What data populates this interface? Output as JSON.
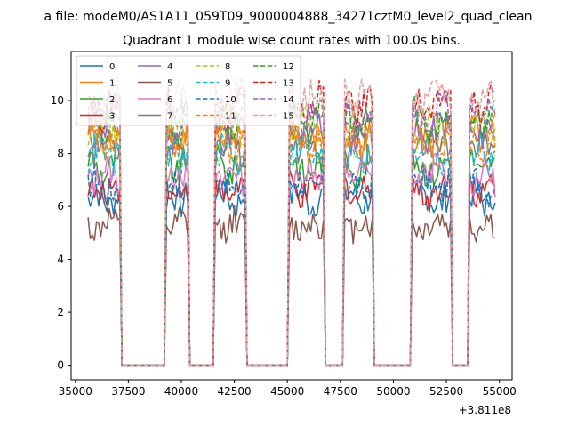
{
  "figure": {
    "suptitle": "a file: modeM0/AS1A11_059T09_9000004888_34271cztM0_level2_quad_clean",
    "offset_label": "+3.811e8"
  },
  "chart_data": {
    "type": "line",
    "title": "Quadrant 1 module wise count rates with 100.0s bins.",
    "xlabel": "",
    "ylabel": "",
    "xlim": [
      34800,
      55600
    ],
    "ylim": [
      -0.55,
      11.85
    ],
    "x_ticks": [
      35000,
      37500,
      40000,
      42500,
      45000,
      47500,
      50000,
      52500,
      55000
    ],
    "x_tick_labels": [
      "35000",
      "37500",
      "40000",
      "42500",
      "45000",
      "47500",
      "50000",
      "52500",
      "55000"
    ],
    "y_ticks": [
      0,
      2,
      4,
      6,
      8,
      10
    ],
    "y_tick_labels": [
      "0",
      "2",
      "4",
      "6",
      "8",
      "10"
    ],
    "x_offset": 381100000,
    "bin_seconds": 100,
    "grid": false,
    "legend_position": "top-left",
    "legend_columns": 4,
    "on_segments": [
      [
        35600,
        37100
      ],
      [
        39300,
        40300
      ],
      [
        41600,
        43000
      ],
      [
        45100,
        46700
      ],
      [
        47700,
        49000
      ],
      [
        50900,
        52700
      ],
      [
        53600,
        54800
      ]
    ],
    "series": [
      {
        "name": "0",
        "color": "#1f77b4",
        "dash": "solid",
        "level": 6.3
      },
      {
        "name": "1",
        "color": "#ff7f0e",
        "dash": "solid",
        "level": 8.6
      },
      {
        "name": "2",
        "color": "#2ca02c",
        "dash": "solid",
        "level": 7.5
      },
      {
        "name": "3",
        "color": "#d62728",
        "dash": "solid",
        "level": 6.6
      },
      {
        "name": "4",
        "color": "#9467bd",
        "dash": "solid",
        "level": 8.8
      },
      {
        "name": "5",
        "color": "#8c564b",
        "dash": "solid",
        "level": 5.3
      },
      {
        "name": "6",
        "color": "#e377c2",
        "dash": "solid",
        "level": 7.2
      },
      {
        "name": "7",
        "color": "#7f7f7f",
        "dash": "solid",
        "level": 8.3
      },
      {
        "name": "8",
        "color": "#bcbd22",
        "dash": "dashed",
        "level": 9.0
      },
      {
        "name": "9",
        "color": "#17becf",
        "dash": "dashed",
        "level": 8.0
      },
      {
        "name": "10",
        "color": "#1f77b4",
        "dash": "dashed",
        "level": 6.8
      },
      {
        "name": "11",
        "color": "#ff7f0e",
        "dash": "dashed",
        "level": 8.4
      },
      {
        "name": "12",
        "color": "#2ca02c",
        "dash": "dashed",
        "level": 9.2
      },
      {
        "name": "13",
        "color": "#d62728",
        "dash": "dashed",
        "level": 9.8
      },
      {
        "name": "14",
        "color": "#9467bd",
        "dash": "dashed",
        "level": 9.5
      },
      {
        "name": "15",
        "color": "#e8a0a0",
        "dash": "dashed",
        "level": 10.1
      }
    ]
  }
}
